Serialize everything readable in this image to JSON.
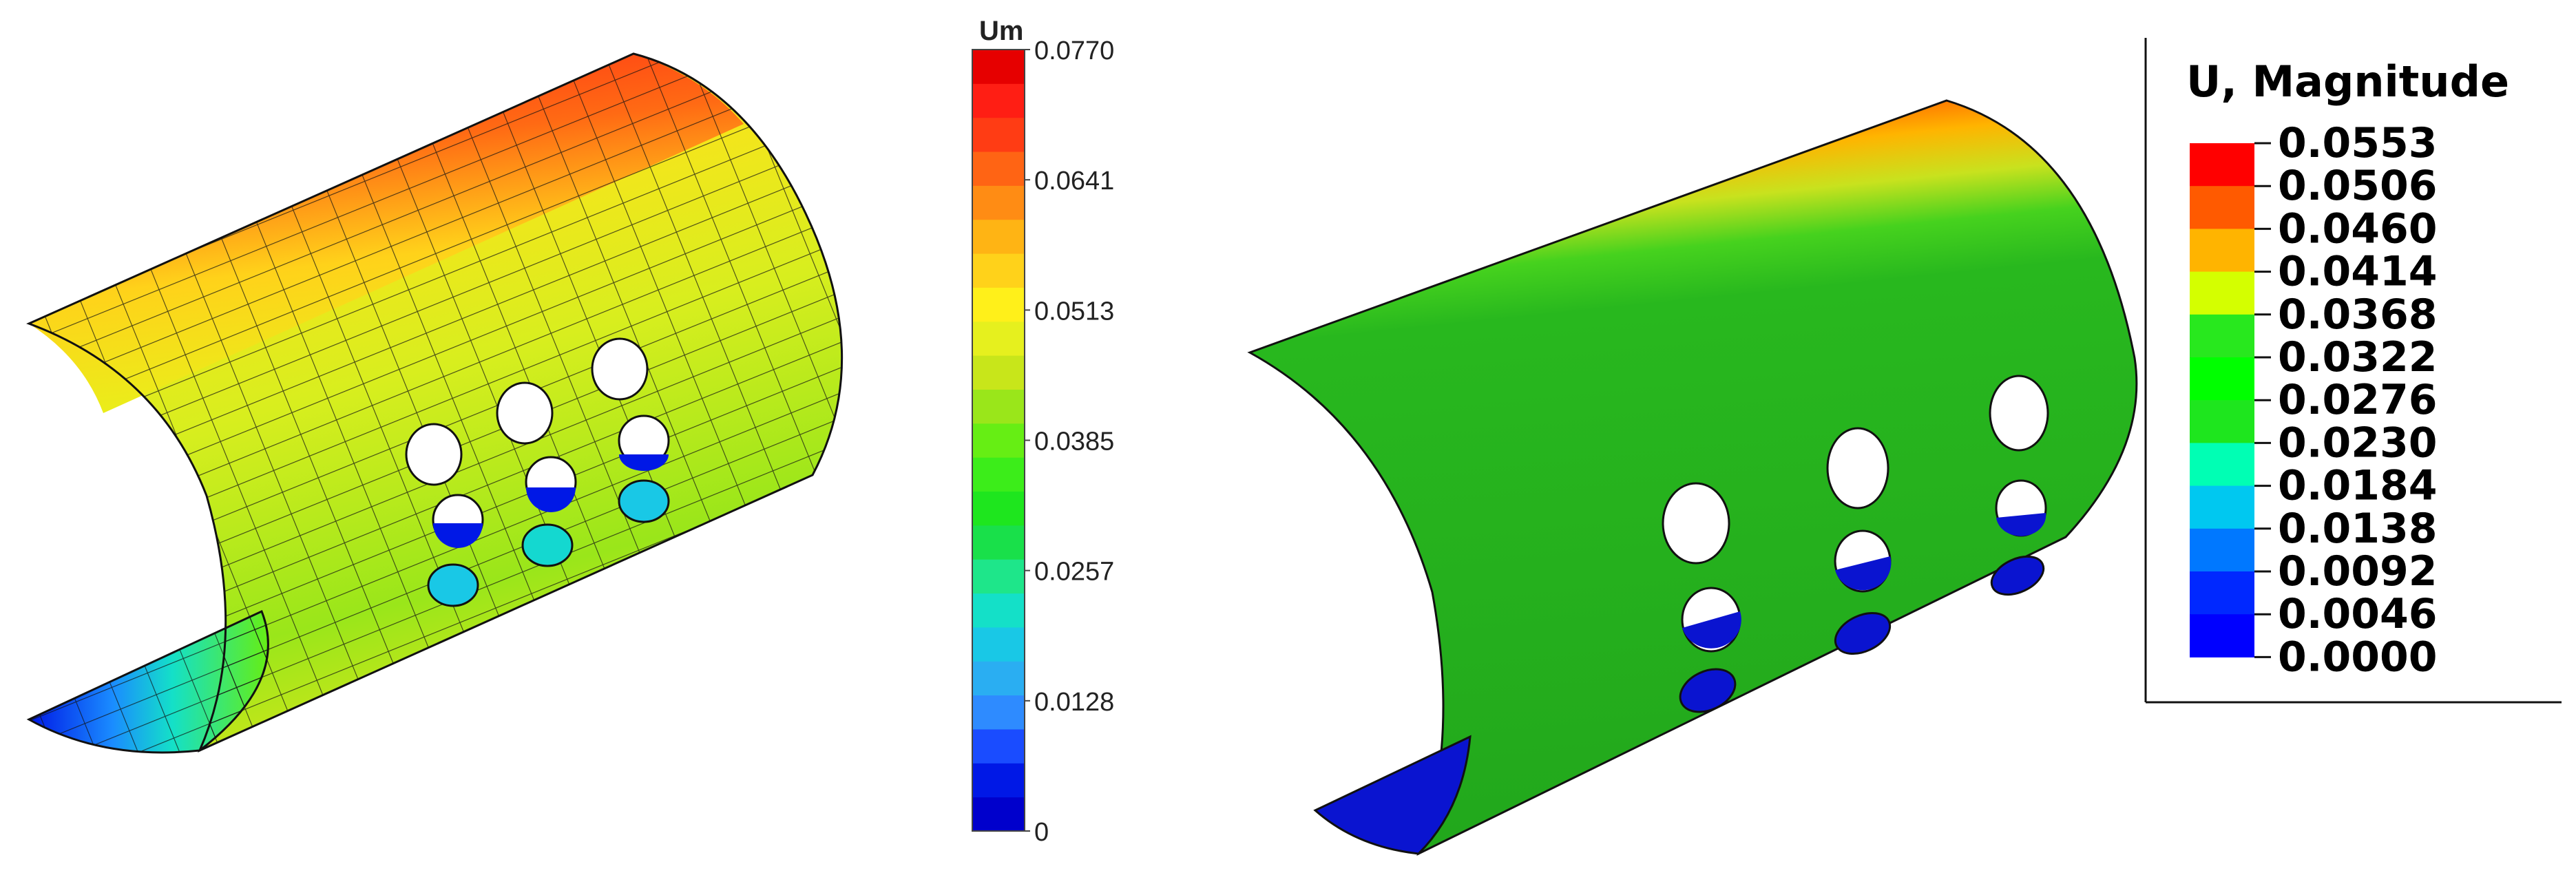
{
  "left_legend": {
    "title": "Um",
    "max_label": "0.0770",
    "labels": [
      "0.0770",
      "0.0641",
      "0.0513",
      "0.0385",
      "0.0257",
      "0.0128",
      "0"
    ],
    "colors": [
      "#0000cc",
      "#0018e6",
      "#1a4cff",
      "#2e8bff",
      "#2aaef2",
      "#19c8e6",
      "#14e0c8",
      "#1ee68a",
      "#19e04a",
      "#1ee61e",
      "#3ced1a",
      "#66ee14",
      "#9ae61a",
      "#c8e61a",
      "#e6f01e",
      "#fff01a",
      "#ffd21a",
      "#ffb414",
      "#ff8c14",
      "#ff6414",
      "#ff3c14",
      "#ff1e14",
      "#e60000"
    ]
  },
  "right_legend": {
    "title": "U, Magnitude",
    "labels": [
      "0.0553",
      "0.0506",
      "0.0460",
      "0.0414",
      "0.0368",
      "0.0322",
      "0.0276",
      "0.0230",
      "0.0184",
      "0.0138",
      "0.0092",
      "0.0046",
      "0.0000"
    ],
    "colors": [
      "#ff0000",
      "#ff5a00",
      "#ffb400",
      "#d4ff00",
      "#28e81e",
      "#00ff00",
      "#1ee61e",
      "#00ffb4",
      "#00c8f0",
      "#0078ff",
      "#0028ff",
      "#0000ff"
    ]
  }
}
